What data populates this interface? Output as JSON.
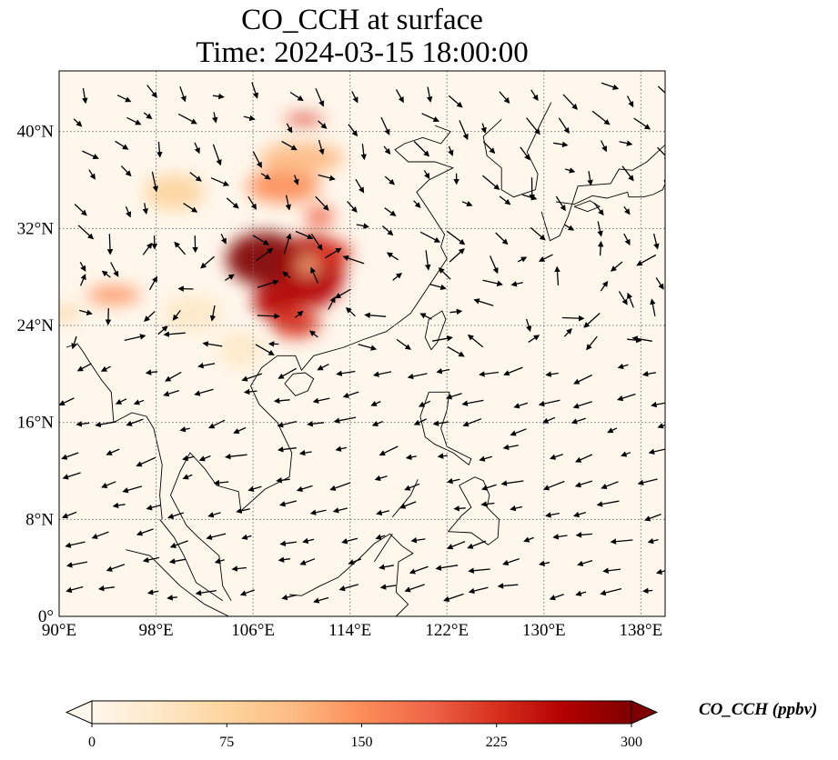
{
  "title": "CO_CCH at surface",
  "subtitle": "Time: 2024-03-15 18:00:00",
  "map": {
    "extent": {
      "lon_min": 90,
      "lon_max": 140,
      "lat_min": 0,
      "lat_max": 45
    },
    "lon_ticks": [
      90,
      98,
      106,
      114,
      122,
      130,
      138
    ],
    "lat_ticks": [
      0,
      8,
      16,
      24,
      32,
      40
    ],
    "lon_tick_labels": [
      "90°E",
      "98°E",
      "106°E",
      "114°E",
      "122°E",
      "130°E",
      "138°E"
    ],
    "lat_tick_labels": [
      "0°",
      "8°N",
      "16°N",
      "24°N",
      "32°N",
      "40°N"
    ],
    "gridlines": true,
    "field": "CO_CCH",
    "plumes": [
      {
        "lon": 107.0,
        "lat": 29.5,
        "rlon": 3.2,
        "rlat": 2.2,
        "value": 290
      },
      {
        "lon": 111.0,
        "lat": 28.5,
        "rlon": 2.5,
        "rlat": 3.0,
        "value": 260
      },
      {
        "lon": 108.0,
        "lat": 26.0,
        "rlon": 2.0,
        "rlat": 1.5,
        "value": 250
      },
      {
        "lon": 109.5,
        "lat": 24.2,
        "rlon": 2.0,
        "rlat": 1.2,
        "value": 240
      },
      {
        "lon": 112.5,
        "lat": 30.0,
        "rlon": 1.6,
        "rlat": 1.0,
        "value": 220
      },
      {
        "lon": 108.5,
        "lat": 35.5,
        "rlon": 3.0,
        "rlat": 1.4,
        "value": 160
      },
      {
        "lon": 110.0,
        "lat": 37.8,
        "rlon": 3.5,
        "rlat": 1.3,
        "value": 110
      },
      {
        "lon": 111.5,
        "lat": 33.0,
        "rlon": 1.2,
        "rlat": 0.8,
        "value": 200
      },
      {
        "lon": 110.2,
        "lat": 41.0,
        "rlon": 1.6,
        "rlat": 0.4,
        "value": 230
      },
      {
        "lon": 110.5,
        "lat": 29.0,
        "rlon": 0.8,
        "rlat": 0.6,
        "value": 120
      },
      {
        "lon": 94.5,
        "lat": 26.5,
        "rlon": 2.2,
        "rlat": 0.7,
        "value": 140
      },
      {
        "lon": 90.5,
        "lat": 25.0,
        "rlon": 1.2,
        "rlat": 0.6,
        "value": 90
      },
      {
        "lon": 99.5,
        "lat": 35.0,
        "rlon": 2.5,
        "rlat": 1.5,
        "value": 60
      },
      {
        "lon": 105.0,
        "lat": 22.0,
        "rlon": 1.8,
        "rlat": 1.5,
        "value": 50
      },
      {
        "lon": 101.0,
        "lat": 25.0,
        "rlon": 2.5,
        "rlat": 1.5,
        "value": 35
      }
    ],
    "wind_field": {
      "description_source": "vector arrows",
      "count_hint": "regular sampled grid"
    }
  },
  "colorbar": {
    "label": "CO_CCH (ppbv)",
    "min": 0,
    "max": 300,
    "ticks": [
      0,
      75,
      150,
      225,
      300
    ],
    "tick_labels": [
      "0",
      "75",
      "150",
      "225",
      "300"
    ],
    "colormap": [
      "#fff7ec",
      "#fee8c8",
      "#fdd49e",
      "#fdbb84",
      "#fc8d59",
      "#ef6548",
      "#d7301f",
      "#b30000",
      "#7f0000"
    ],
    "extend": "both"
  }
}
